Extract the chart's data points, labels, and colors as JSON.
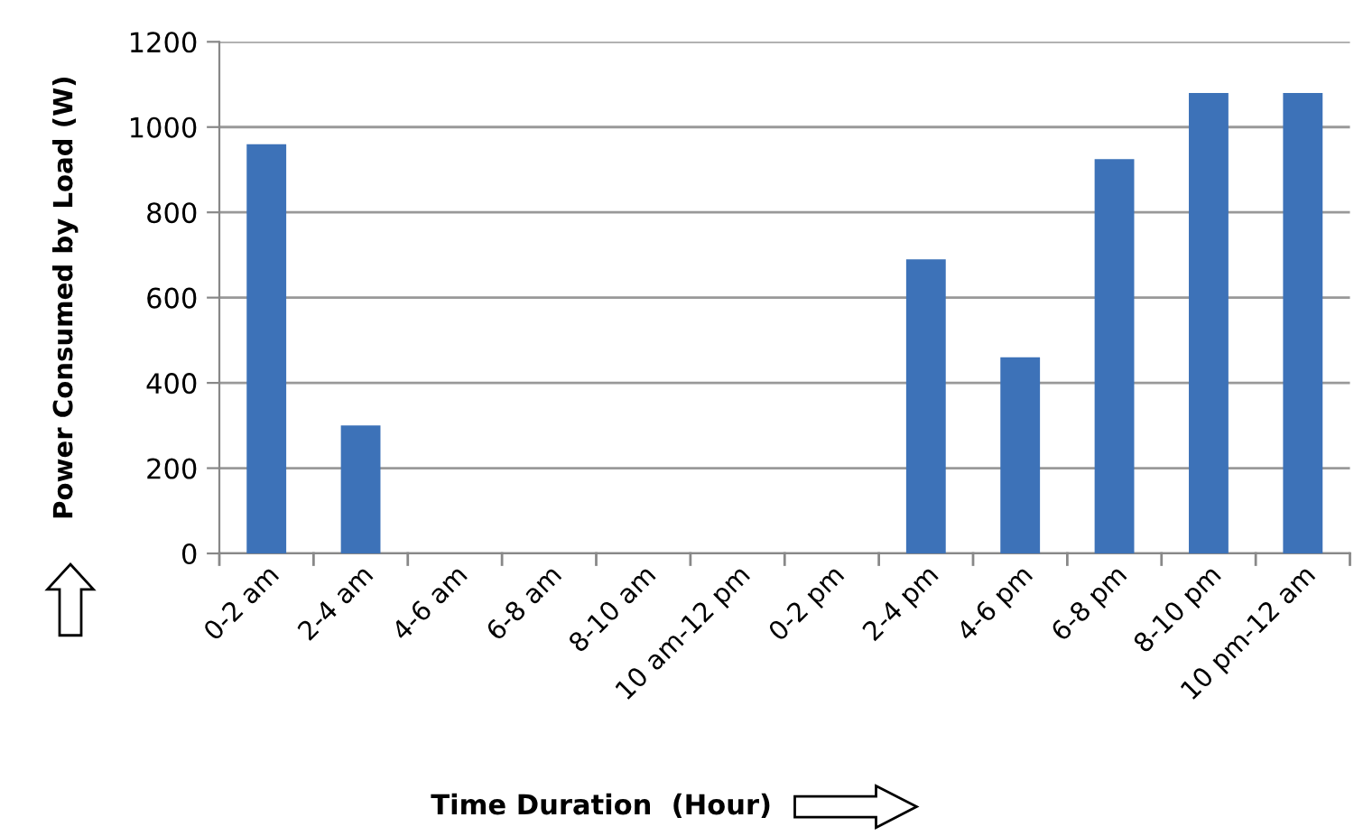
{
  "chart_data": {
    "type": "bar",
    "xlabel": "Time Duration  (Hour)",
    "ylabel": "Power Consumed by Load (W)",
    "categories": [
      "0-2 am",
      "2-4 am",
      "4-6 am",
      "6-8 am",
      "8-10 am",
      "10 am-12 pm",
      "0-2 pm",
      "2-4 pm",
      "4-6 pm",
      "6-8 pm",
      "8-10 pm",
      "10 pm-12 am"
    ],
    "values": [
      960,
      300,
      0,
      0,
      0,
      0,
      0,
      690,
      460,
      925,
      1080,
      1080
    ],
    "color": "#3d72b8",
    "ylim": [
      0,
      1200
    ],
    "yticks": [
      0,
      200,
      400,
      600,
      800,
      1000,
      1200
    ],
    "grid": "y",
    "legend": false
  }
}
